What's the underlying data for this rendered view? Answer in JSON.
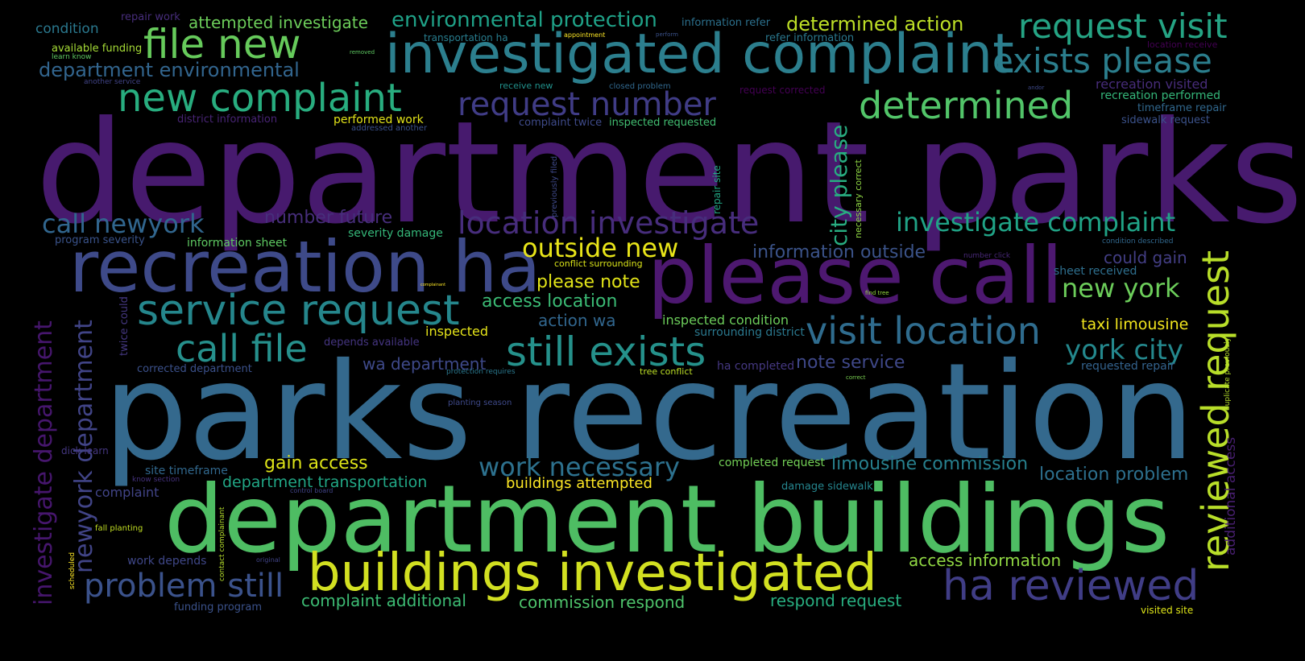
{
  "words": [
    {
      "text": "department parks",
      "color": "#471a6e"
    },
    {
      "text": "parks recreation",
      "color": "#34698d"
    },
    {
      "text": "department buildings",
      "color": "#4ebd63"
    },
    {
      "text": "please call",
      "color": "#4d1870"
    },
    {
      "text": "recreation ha",
      "color": "#3e4a89"
    },
    {
      "text": "investigated complaint",
      "color": "#2c7f8e"
    },
    {
      "text": "buildings investigated",
      "color": "#d2e021"
    },
    {
      "text": "reviewed request",
      "color": "#b8de29"
    },
    {
      "text": "ha reviewed",
      "color": "#403d86"
    },
    {
      "text": "service request",
      "color": "#25868c"
    },
    {
      "text": "new complaint",
      "color": "#28ad7f"
    },
    {
      "text": "file new",
      "color": "#66ca5b"
    },
    {
      "text": "request visit",
      "color": "#25a484"
    },
    {
      "text": "exists please",
      "color": "#2b7e8d"
    },
    {
      "text": "determined",
      "color": "#52c569"
    },
    {
      "text": "still exists",
      "color": "#25918b"
    },
    {
      "text": "visit location",
      "color": "#2f6c8e"
    },
    {
      "text": "call file",
      "color": "#26908c"
    },
    {
      "text": "request number",
      "color": "#403c86"
    },
    {
      "text": "location investigate",
      "color": "#472d7c"
    },
    {
      "text": "investigate complaint",
      "color": "#20a386"
    },
    {
      "text": "investigate department",
      "color": "#46166d"
    },
    {
      "text": "newyork department",
      "color": "#414487"
    },
    {
      "text": "problem still",
      "color": "#3b528b"
    },
    {
      "text": "work necessary",
      "color": "#2d718e"
    },
    {
      "text": "york city",
      "color": "#24888d"
    },
    {
      "text": "new york",
      "color": "#6ccd5a"
    },
    {
      "text": "call newyork",
      "color": "#31668e"
    },
    {
      "text": "outside new",
      "color": "#e8e419"
    },
    {
      "text": "city please",
      "color": "#28ad80"
    },
    {
      "text": "department environmental",
      "color": "#32658e"
    },
    {
      "text": "environmental protection",
      "color": "#1fa187"
    },
    {
      "text": "determined action",
      "color": "#bddf26"
    },
    {
      "text": "information outside",
      "color": "#3b5389"
    },
    {
      "text": "please note",
      "color": "#e2e418"
    },
    {
      "text": "access location",
      "color": "#3bbb75"
    },
    {
      "text": "limousine commission",
      "color": "#27808e"
    },
    {
      "text": "location problem",
      "color": "#2d708e"
    },
    {
      "text": "number future",
      "color": "#472e7b"
    },
    {
      "text": "attempted investigate",
      "color": "#6ccd5a"
    },
    {
      "text": "gain access",
      "color": "#dde318"
    },
    {
      "text": "complaint additional",
      "color": "#3dbc74"
    },
    {
      "text": "commission respond",
      "color": "#4ec36b"
    },
    {
      "text": "respond request",
      "color": "#28ae80"
    },
    {
      "text": "department transportation",
      "color": "#21a685"
    },
    {
      "text": "buildings attempted",
      "color": "#fde725"
    },
    {
      "text": "access information",
      "color": "#90d743"
    },
    {
      "text": "note service",
      "color": "#3f4889"
    },
    {
      "text": "wa department",
      "color": "#3e4989"
    },
    {
      "text": "action wa",
      "color": "#31668e"
    },
    {
      "text": "taxi limousine",
      "color": "#f1e51d"
    },
    {
      "text": "could gain",
      "color": "#433e85"
    },
    {
      "text": "inspected condition",
      "color": "#6ccd5a"
    },
    {
      "text": "additional access",
      "color": "#481f70"
    },
    {
      "text": "condition",
      "color": "#2a788e"
    },
    {
      "text": "recreation visited",
      "color": "#472c7a"
    },
    {
      "text": "recreation performed",
      "color": "#34b679"
    },
    {
      "text": "sheet received",
      "color": "#2e6f8e"
    },
    {
      "text": "requested repair",
      "color": "#33628d"
    },
    {
      "text": "information sheet",
      "color": "#5ec962"
    },
    {
      "text": "severity damage",
      "color": "#35b779"
    },
    {
      "text": "program severity",
      "color": "#3a538b"
    },
    {
      "text": "inspected",
      "color": "#e5e419"
    },
    {
      "text": "surrounding district",
      "color": "#2a788e"
    },
    {
      "text": "ha completed",
      "color": "#453882"
    },
    {
      "text": "complaint twice",
      "color": "#3e4a89"
    },
    {
      "text": "inspected requested",
      "color": "#42be71"
    },
    {
      "text": "performed work",
      "color": "#e3e418"
    },
    {
      "text": "district information",
      "color": "#482475"
    },
    {
      "text": "completed request",
      "color": "#73d056"
    },
    {
      "text": "site timeframe",
      "color": "#31688e"
    },
    {
      "text": "complaint",
      "color": "#414487"
    },
    {
      "text": "work depends",
      "color": "#3f4788"
    },
    {
      "text": "funding program",
      "color": "#3b528b"
    },
    {
      "text": "corrected department",
      "color": "#3b518b"
    },
    {
      "text": "depends available",
      "color": "#453581"
    },
    {
      "text": "damage sidewalk",
      "color": "#25858e"
    },
    {
      "text": "fall planting",
      "color": "#c2df23"
    },
    {
      "text": "dick learn",
      "color": "#453781"
    },
    {
      "text": "planting season",
      "color": "#3e4989"
    },
    {
      "text": "visited site",
      "color": "#dde318"
    },
    {
      "text": "timeframe repair",
      "color": "#31688e"
    },
    {
      "text": "sidewalk request",
      "color": "#3b528b"
    },
    {
      "text": "refer information",
      "color": "#2a788e"
    },
    {
      "text": "information refer",
      "color": "#2c718e"
    },
    {
      "text": "repair work",
      "color": "#472d7b"
    },
    {
      "text": "available funding",
      "color": "#a5db36"
    },
    {
      "text": "transportation ha",
      "color": "#287d8e"
    },
    {
      "text": "request corrected",
      "color": "#440154"
    },
    {
      "text": "receive new",
      "color": "#21918c"
    },
    {
      "text": "closed problem",
      "color": "#31688e"
    },
    {
      "text": "addressed another",
      "color": "#3b518b"
    },
    {
      "text": "another service",
      "color": "#414487"
    },
    {
      "text": "learn know",
      "color": "#5ec962"
    },
    {
      "text": "conflict surrounding",
      "color": "#d8e219"
    },
    {
      "text": "protection requires",
      "color": "#2a788e"
    },
    {
      "text": "tree conflict",
      "color": "#bddf26"
    },
    {
      "text": "know section",
      "color": "#46327e"
    },
    {
      "text": "control board",
      "color": "#414487"
    },
    {
      "text": "condition described",
      "color": "#31688e"
    },
    {
      "text": "number click",
      "color": "#482878"
    },
    {
      "text": "location receive",
      "color": "#440154"
    },
    {
      "text": "appointment",
      "color": "#fde725"
    },
    {
      "text": "removed",
      "color": "#5ec962"
    },
    {
      "text": "perform",
      "color": "#3b528b"
    },
    {
      "text": "andor",
      "color": "#3e4989"
    },
    {
      "text": "find tree",
      "color": "#95d840"
    },
    {
      "text": "correct",
      "color": "#7ad151"
    },
    {
      "text": "complainant",
      "color": "#fde725"
    },
    {
      "text": "original",
      "color": "#414487"
    },
    {
      "text": "scheduled",
      "color": "#fde725"
    },
    {
      "text": "contact complainant",
      "color": "#b5de2b"
    },
    {
      "text": "twice could",
      "color": "#453882"
    },
    {
      "text": "previously filed",
      "color": "#3e4989"
    },
    {
      "text": "repair site",
      "color": "#22a884"
    },
    {
      "text": "necessary correct",
      "color": "#8fd744"
    },
    {
      "text": "duplicate previously",
      "color": "#b5de2b"
    }
  ]
}
